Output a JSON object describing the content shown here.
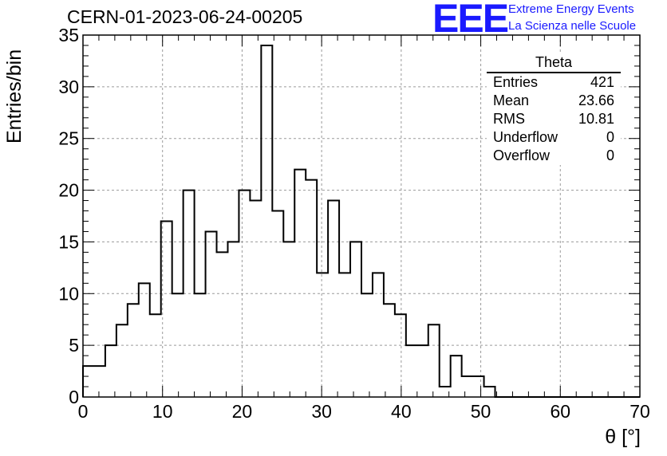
{
  "title": "CERN-01-2023-06-24-00205",
  "logo": {
    "mark": "EEE",
    "line1": "Extreme Energy Events",
    "line2": "La Scienza nelle Scuole",
    "color": "#1a1aff"
  },
  "stats": {
    "title": "Theta",
    "rows": [
      {
        "label": "Entries",
        "value": "421"
      },
      {
        "label": "Mean",
        "value": "23.66"
      },
      {
        "label": "RMS",
        "value": "10.81"
      },
      {
        "label": "Underflow",
        "value": "0"
      },
      {
        "label": "Overflow",
        "value": "0"
      }
    ]
  },
  "chart_data": {
    "type": "bar",
    "style": "step-histogram",
    "xlabel": "θ [°]",
    "ylabel": "Entries/bin",
    "xlim": [
      0,
      70
    ],
    "ylim": [
      0,
      35
    ],
    "bin_width": 1.4,
    "bin_start": 0,
    "values": [
      3,
      3,
      5,
      7,
      9,
      11,
      8,
      17,
      10,
      20,
      10,
      16,
      14,
      15,
      20,
      19,
      34,
      18,
      15,
      22,
      21,
      12,
      19,
      12,
      15,
      10,
      12,
      9,
      8,
      5,
      5,
      7,
      1,
      4,
      2,
      2,
      1,
      0,
      0,
      0,
      0,
      0,
      0,
      0,
      0,
      0,
      0,
      0,
      0,
      0
    ],
    "x_ticks": [
      0,
      10,
      20,
      30,
      40,
      50,
      60,
      70
    ],
    "y_ticks": [
      0,
      5,
      10,
      15,
      20,
      25,
      30,
      35
    ],
    "grid": true
  }
}
